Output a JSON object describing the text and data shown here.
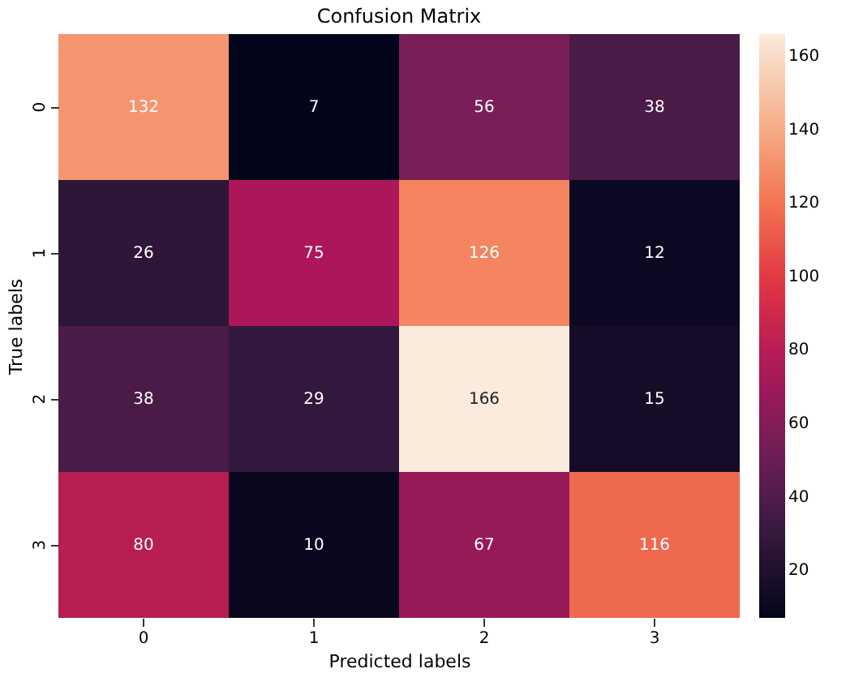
{
  "chart_data": {
    "type": "heatmap",
    "title": "Confusion Matrix",
    "xlabel": "Predicted labels",
    "ylabel": "True labels",
    "categories": [
      "0",
      "1",
      "2",
      "3"
    ],
    "y_categories": [
      "0",
      "1",
      "2",
      "3"
    ],
    "cells": [
      [
        132,
        7,
        56,
        38
      ],
      [
        26,
        75,
        126,
        12
      ],
      [
        38,
        29,
        166,
        15
      ],
      [
        80,
        10,
        67,
        116
      ]
    ],
    "data_labels": true,
    "clim": [
      7,
      166
    ],
    "cticks": [
      20,
      40,
      60,
      80,
      100,
      120,
      140,
      160
    ]
  }
}
